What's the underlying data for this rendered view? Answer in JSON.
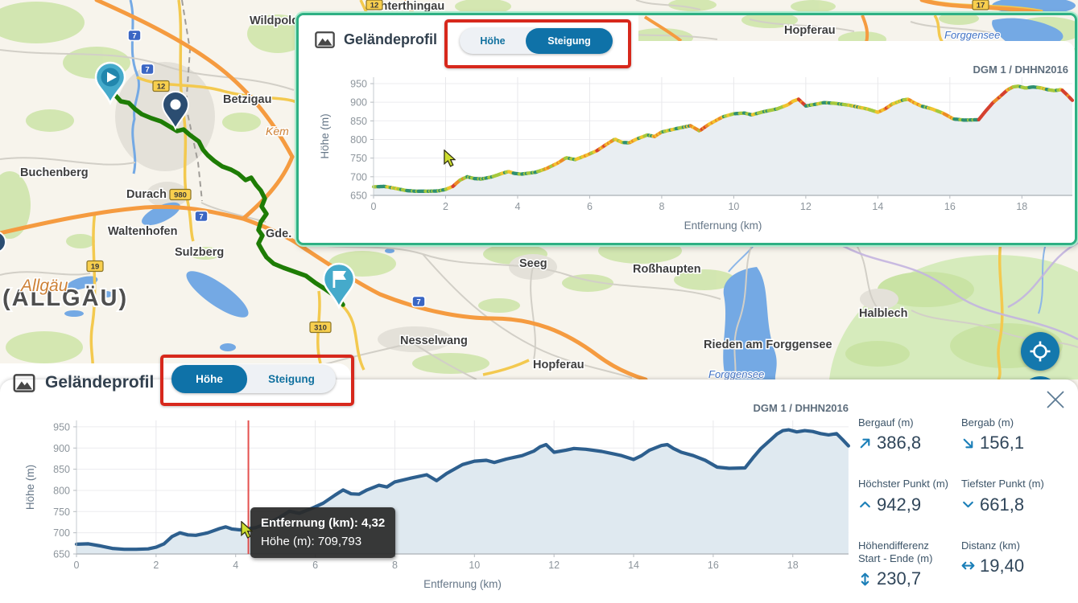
{
  "panels": {
    "top": {
      "title": "Geländeprofil",
      "toggle": {
        "hoehe": "Höhe",
        "steigung": "Steigung",
        "selected": "steigung"
      },
      "source_label": "DGM 1 / DHHN2016"
    },
    "bottom": {
      "title": "Geländeprofil",
      "toggle": {
        "hoehe": "Höhe",
        "steigung": "Steigung",
        "selected": "hoehe"
      },
      "source_label": "DGM 1 / DHHN2016"
    }
  },
  "tooltip": {
    "line1": "Entfernung (km): 4,32",
    "line2": "Höhe (m): 709,793",
    "x_km": 4.32,
    "y_m": 709.793
  },
  "stats": [
    {
      "label": "Bergauf (m)",
      "value": "386,8",
      "icon": "arrow-up-right-icon"
    },
    {
      "label": "Bergab (m)",
      "value": "156,1",
      "icon": "arrow-down-right-icon"
    },
    {
      "label": "Höchster Punkt (m)",
      "value": "942,9",
      "icon": "chevron-up-icon"
    },
    {
      "label": "Tiefster Punkt (m)",
      "value": "661,8",
      "icon": "chevron-down-icon"
    },
    {
      "label": "Höhendifferenz Start - Ende (m)",
      "value": "230,7",
      "icon": "arrow-vertical-icon"
    },
    {
      "label": "Distanz (km)",
      "value": "19,40",
      "icon": "arrow-horizontal-icon"
    }
  ],
  "chart_data": {
    "type": "area",
    "title": "Geländeprofil",
    "xlabel": "Entfernung (km)",
    "ylabel": "Höhe (m)",
    "xticks": [
      0,
      2,
      4,
      6,
      8,
      10,
      12,
      14,
      16,
      18
    ],
    "yticks": [
      650,
      700,
      750,
      800,
      850,
      900,
      950
    ],
    "xlim": [
      0,
      19.4
    ],
    "ylim": [
      650,
      950
    ],
    "x_km": [
      0,
      0.3,
      0.6,
      0.9,
      1.2,
      1.5,
      1.8,
      2.0,
      2.2,
      2.4,
      2.6,
      2.8,
      3.0,
      3.3,
      3.6,
      3.75,
      3.9,
      4.1,
      4.32,
      4.5,
      4.8,
      5.1,
      5.35,
      5.6,
      5.9,
      6.2,
      6.5,
      6.7,
      6.9,
      7.1,
      7.3,
      7.6,
      7.8,
      8.0,
      8.4,
      8.8,
      9.05,
      9.3,
      9.7,
      10.0,
      10.3,
      10.5,
      10.8,
      11.0,
      11.2,
      11.5,
      11.65,
      11.8,
      12.0,
      12.3,
      12.5,
      12.8,
      13.2,
      13.5,
      13.7,
      14.0,
      14.2,
      14.4,
      14.7,
      14.85,
      15.0,
      15.2,
      15.5,
      15.8,
      16.1,
      16.4,
      16.8,
      17.0,
      17.2,
      17.45,
      17.6,
      17.75,
      17.9,
      18.1,
      18.3,
      18.5,
      18.7,
      18.9,
      19.1,
      19.25,
      19.4
    ],
    "y_m": [
      673,
      674,
      669,
      663,
      661,
      661,
      662,
      666,
      674,
      691,
      700,
      695,
      694,
      700,
      710,
      714,
      709,
      707,
      709.8,
      712,
      722,
      736,
      751,
      746,
      757,
      770,
      789,
      801,
      792,
      791,
      801,
      812,
      808,
      820,
      829,
      837,
      823,
      840,
      861,
      869,
      871,
      866,
      874,
      878,
      882,
      893,
      903,
      908,
      890,
      895,
      899,
      897,
      892,
      886,
      882,
      873,
      882,
      895,
      906,
      908,
      899,
      890,
      882,
      871,
      855,
      852,
      853,
      877,
      899,
      920,
      933,
      941,
      943,
      938,
      941,
      939,
      934,
      931,
      934,
      920,
      905
    ],
    "charts": [
      {
        "id": "steigung",
        "mode": "slope-colored",
        "source": "DGM 1 / DHHN2016"
      },
      {
        "id": "hoehe",
        "mode": "elevation",
        "source": "DGM 1 / DHHN2016",
        "cursor_km": 4.32,
        "line_color": "#2d5f8e",
        "fill_color": "#dfe9f0"
      }
    ],
    "slope_colors": {
      "flat": "#2e8f72",
      "gentle": "#a6c93d",
      "moderate": "#f2c42f",
      "steep": "#ec8c26",
      "very_steep": "#d5412f"
    }
  },
  "map": {
    "towns": [
      {
        "text": "N (ALLGÄU)"
      },
      {
        "text": "Betzigau"
      },
      {
        "text": "Wildpoldsried"
      },
      {
        "text": "Unterthingau"
      },
      {
        "text": "Buchenberg"
      },
      {
        "text": "Durach"
      },
      {
        "text": "Waltenhofen"
      },
      {
        "text": "Sulzberg"
      },
      {
        "text": "Gde. Oy-Mittelberg"
      },
      {
        "text": "Nesselwang"
      },
      {
        "text": "Seeg"
      },
      {
        "text": "Hopferau"
      },
      {
        "text": "Roßhaupten"
      },
      {
        "text": "Rieden am Forggensee"
      },
      {
        "text": "Halblech"
      },
      {
        "text": "Hopferau"
      }
    ],
    "regions": [
      {
        "text": "Allgäu"
      },
      {
        "text": "Kem"
      }
    ],
    "waters": [
      {
        "text": "Forggensee"
      },
      {
        "text": "Forggensee"
      }
    ],
    "shields": [
      {
        "label": "7",
        "type": "motorway"
      },
      {
        "label": "7",
        "type": "motorway"
      },
      {
        "label": "12",
        "type": "road"
      },
      {
        "label": "980",
        "type": "road"
      },
      {
        "label": "19",
        "type": "road"
      },
      {
        "label": "7",
        "type": "motorway"
      },
      {
        "label": "310",
        "type": "road"
      },
      {
        "label": "7",
        "type": "motorway"
      },
      {
        "label": "12",
        "type": "road"
      },
      {
        "label": "17",
        "type": "road"
      }
    ],
    "markers": [
      {
        "type": "route-start"
      },
      {
        "type": "route-waypoint"
      },
      {
        "type": "route-end"
      }
    ]
  }
}
